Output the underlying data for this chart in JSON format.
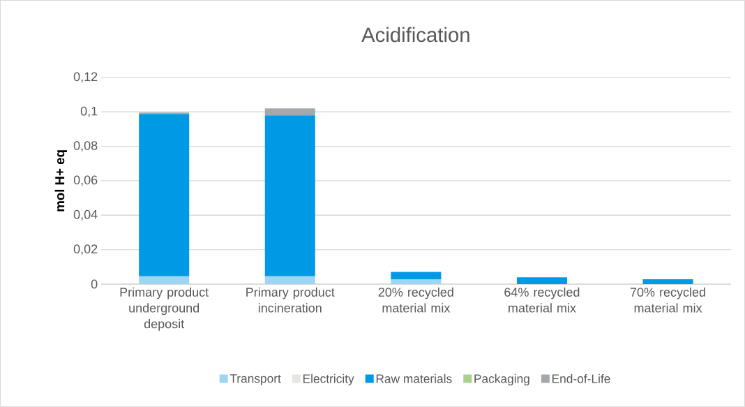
{
  "chart_data": {
    "type": "bar",
    "stacked": true,
    "title": "Acidification",
    "ylabel": "mol H+ eq",
    "categories": [
      "Primary product underground deposit",
      "Primary product incineration",
      "20% recycled material mix",
      "64% recycled material mix",
      "70% recycled material mix"
    ],
    "series": [
      {
        "name": "Transport",
        "color": "#9dd5f3",
        "values": [
          0.0045,
          0.0045,
          0.0028,
          null,
          null
        ]
      },
      {
        "name": "Electricity",
        "color": "#e7e6e0",
        "values": [
          0,
          0,
          0,
          0,
          0
        ]
      },
      {
        "name": "Raw materials",
        "color": "#0099e6",
        "values": [
          0.0943,
          0.0935,
          0.0043,
          0.0039,
          0.0028
        ]
      },
      {
        "name": "Packaging",
        "color": "#a9d18e",
        "values": [
          0,
          0,
          null,
          null,
          null
        ]
      },
      {
        "name": "End-of-Life",
        "color": "#a5a8ab",
        "values": [
          0.0008,
          0.004,
          0,
          0,
          0
        ]
      }
    ],
    "ylim": [
      0,
      0.12
    ],
    "yticks": [
      0,
      {
        "value": 0.02,
        "label": "0,02"
      },
      {
        "value": 0.04,
        "label": "0,04"
      },
      {
        "value": 0.06,
        "label": "0,06"
      },
      {
        "value": 0.08,
        "label": "0,08"
      },
      {
        "value": 0.1,
        "label": "0,1"
      },
      {
        "value": 0.12,
        "label": "0,12"
      }
    ],
    "grid": "y",
    "legend": "bottom"
  }
}
